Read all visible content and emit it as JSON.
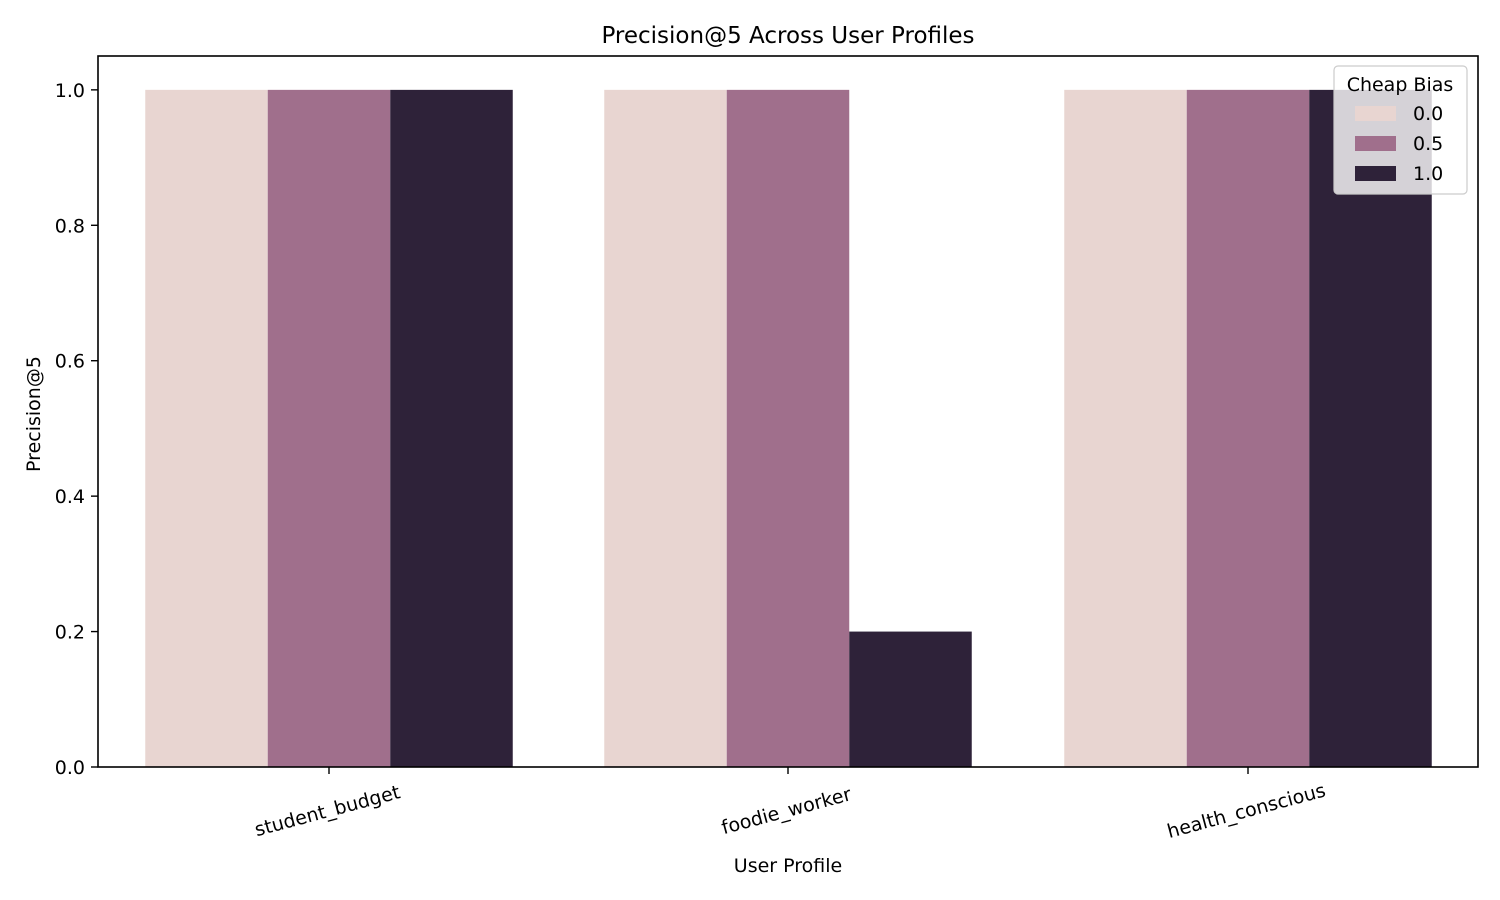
{
  "chart_data": {
    "type": "bar",
    "title": "Precision@5 Across User Profiles",
    "xlabel": "User Profile",
    "ylabel": "Precision@5",
    "categories": [
      "student_budget",
      "foodie_worker",
      "health_conscious"
    ],
    "series": [
      {
        "name": "0.0",
        "values": [
          1.0,
          1.0,
          1.0
        ],
        "color": "#e8d5d1"
      },
      {
        "name": "0.5",
        "values": [
          1.0,
          1.0,
          1.0
        ],
        "color": "#a06f8c"
      },
      {
        "name": "1.0",
        "values": [
          1.0,
          0.2,
          1.0
        ],
        "color": "#2e2239"
      }
    ],
    "ylim": [
      0,
      1.05
    ],
    "yticks": [
      "0.0",
      "0.2",
      "0.4",
      "0.6",
      "0.8",
      "1.0"
    ],
    "legend": {
      "title": "Cheap Bias",
      "placement": "top-right"
    },
    "grid": false
  }
}
